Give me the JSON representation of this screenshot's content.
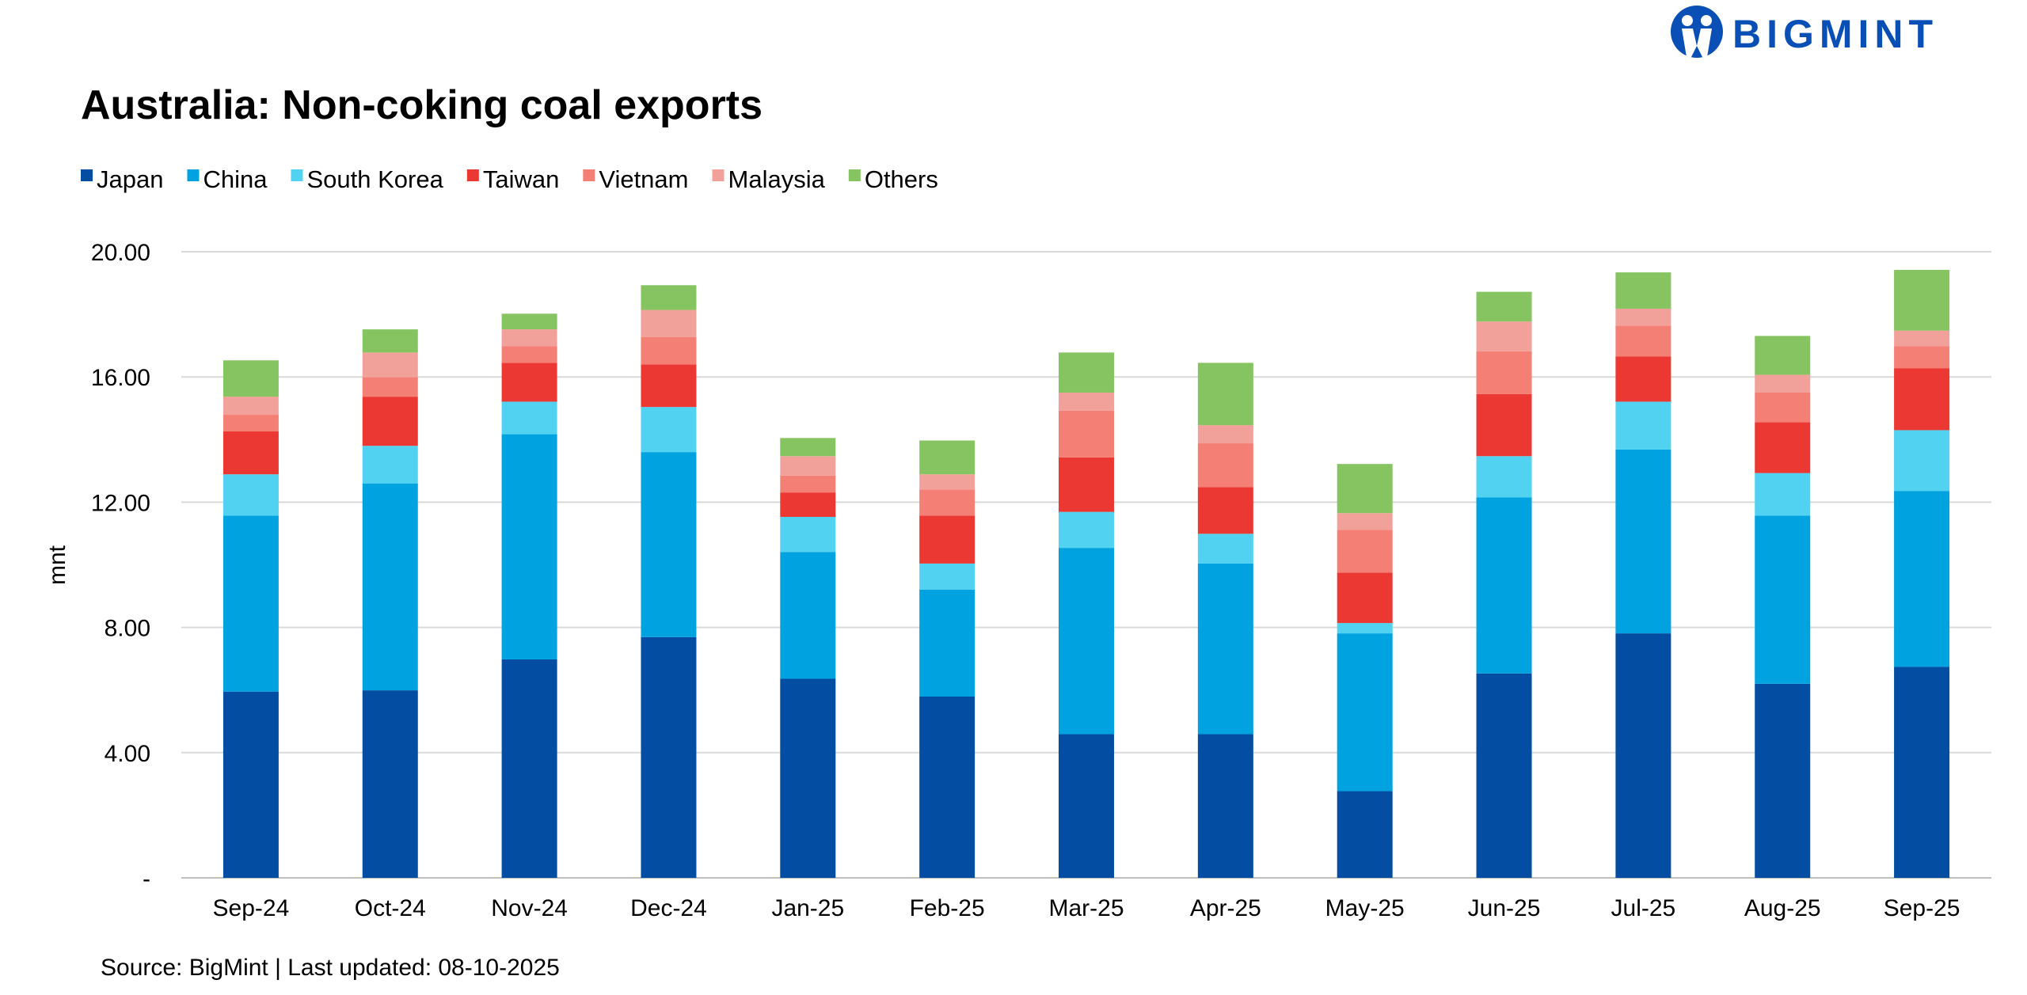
{
  "brand": {
    "logo_text": "BIGMINT",
    "color": "#0a4fb5"
  },
  "footer": {
    "source": "Source: BigMint | Last updated: 08-10-2025"
  },
  "chart_data": {
    "type": "bar",
    "stacked": true,
    "title": "Australia: Non-coking coal exports",
    "xlabel": "",
    "ylabel": "mnt",
    "ylim": [
      0,
      20
    ],
    "yticks": [
      0,
      4,
      8,
      12,
      16,
      20
    ],
    "ytick_labels": [
      "-",
      "4.00",
      "8.00",
      "12.00",
      "16.00",
      "20.00"
    ],
    "grid": true,
    "legend_position": "top-left",
    "categories": [
      "Sep-24",
      "Oct-24",
      "Nov-24",
      "Dec-24",
      "Jan-25",
      "Feb-25",
      "Mar-25",
      "Apr-25",
      "May-25",
      "Jun-25",
      "Jul-25",
      "Aug-25",
      "Sep-25"
    ],
    "series": [
      {
        "name": "Japan",
        "color": "#034ea2",
        "values": [
          5.95,
          5.99,
          6.98,
          7.69,
          6.36,
          5.79,
          4.59,
          4.59,
          2.77,
          6.53,
          7.81,
          6.2,
          6.74
        ]
      },
      {
        "name": "China",
        "color": "#00a3e0",
        "values": [
          5.62,
          6.61,
          7.19,
          5.91,
          4.05,
          3.42,
          5.95,
          5.45,
          5.04,
          5.62,
          5.87,
          5.37,
          5.62
        ]
      },
      {
        "name": "South Korea",
        "color": "#50d2f0",
        "values": [
          1.32,
          1.2,
          1.04,
          1.44,
          1.12,
          0.83,
          1.15,
          0.95,
          0.33,
          1.32,
          1.53,
          1.36,
          1.94
        ]
      },
      {
        "name": "Taiwan",
        "color": "#ec3833",
        "values": [
          1.37,
          1.57,
          1.24,
          1.36,
          0.78,
          1.53,
          1.74,
          1.49,
          1.61,
          1.98,
          1.44,
          1.62,
          1.98
        ]
      },
      {
        "name": "Vietnam",
        "color": "#f47f74",
        "values": [
          0.53,
          0.62,
          0.53,
          0.87,
          0.54,
          0.83,
          1.49,
          1.4,
          1.37,
          1.37,
          0.99,
          0.95,
          0.7
        ]
      },
      {
        "name": "Malaysia",
        "color": "#f2a19a",
        "values": [
          0.58,
          0.79,
          0.54,
          0.87,
          0.62,
          0.49,
          0.58,
          0.58,
          0.53,
          0.95,
          0.54,
          0.57,
          0.5
        ]
      },
      {
        "name": "Others",
        "color": "#86c462",
        "values": [
          1.16,
          0.74,
          0.5,
          0.79,
          0.58,
          1.08,
          1.28,
          1.99,
          1.57,
          0.95,
          1.16,
          1.24,
          1.94
        ]
      }
    ]
  }
}
